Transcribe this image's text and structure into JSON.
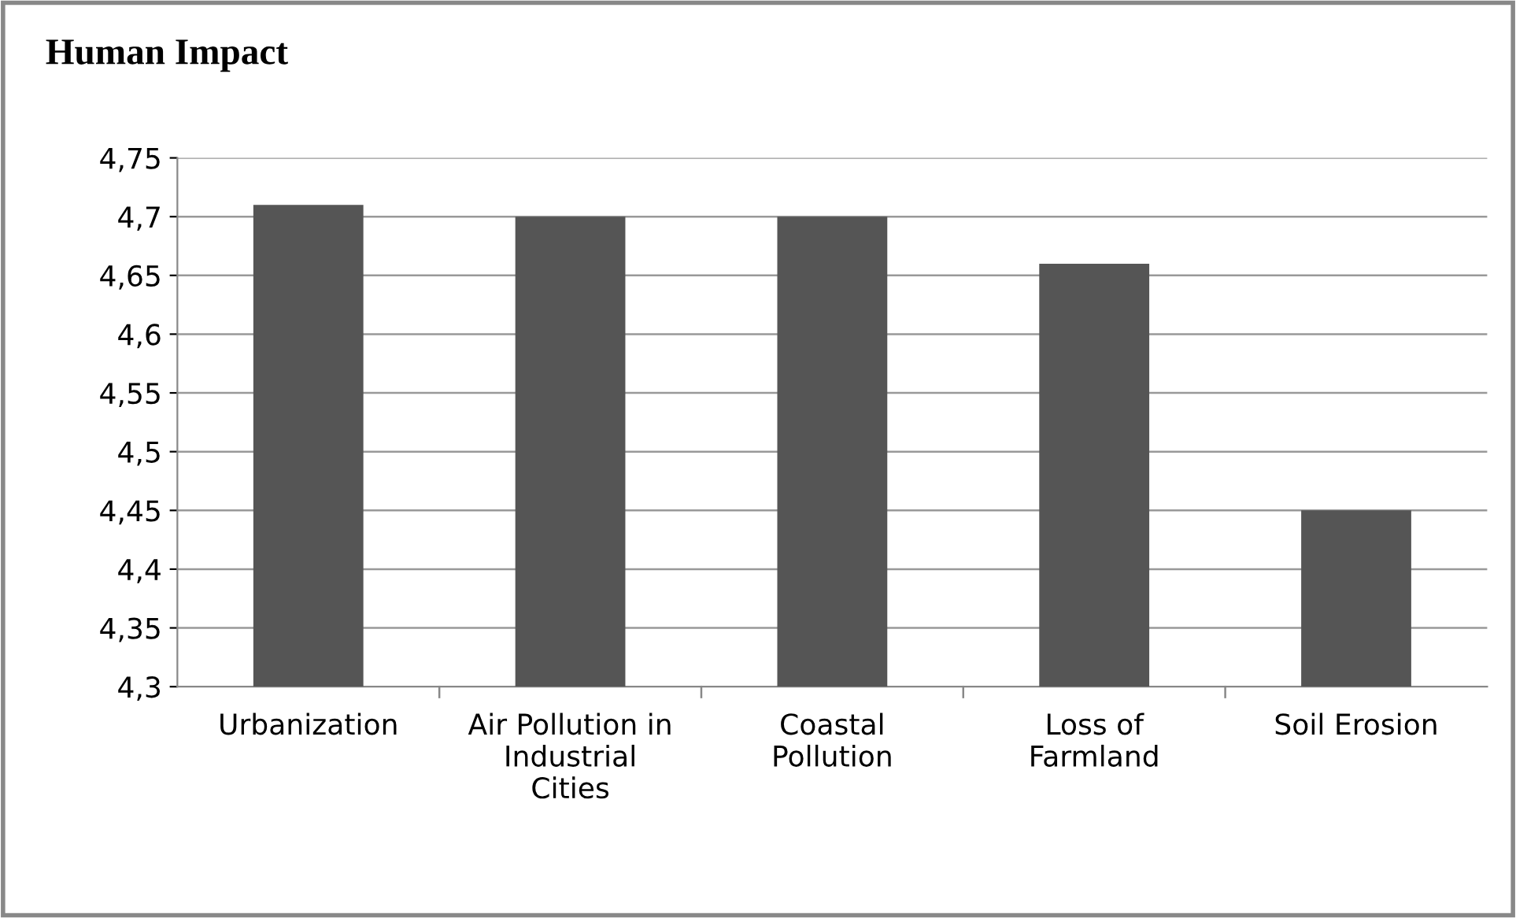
{
  "chart_data": {
    "type": "bar",
    "title": "Human Impact",
    "categories": [
      "Urbanization",
      "Air Pollution in\nIndustrial\nCities",
      "Coastal\nPollution",
      "Loss of\nFarmland",
      "Soil Erosion"
    ],
    "values": [
      4.71,
      4.7,
      4.7,
      4.66,
      4.45
    ],
    "color": "#555555",
    "ylim": [
      4.3,
      4.75
    ],
    "yticks": [
      {
        "value": 4.3,
        "label": "4,3"
      },
      {
        "value": 4.35,
        "label": "4,35"
      },
      {
        "value": 4.4,
        "label": "4,4"
      },
      {
        "value": 4.45,
        "label": "4,45"
      },
      {
        "value": 4.5,
        "label": "4,5"
      },
      {
        "value": 4.55,
        "label": "4,55"
      },
      {
        "value": 4.6,
        "label": "4,6"
      },
      {
        "value": 4.65,
        "label": "4,65"
      },
      {
        "value": 4.7,
        "label": "4,7"
      },
      {
        "value": 4.75,
        "label": "4,75"
      }
    ],
    "grid": "y",
    "legend": false
  }
}
